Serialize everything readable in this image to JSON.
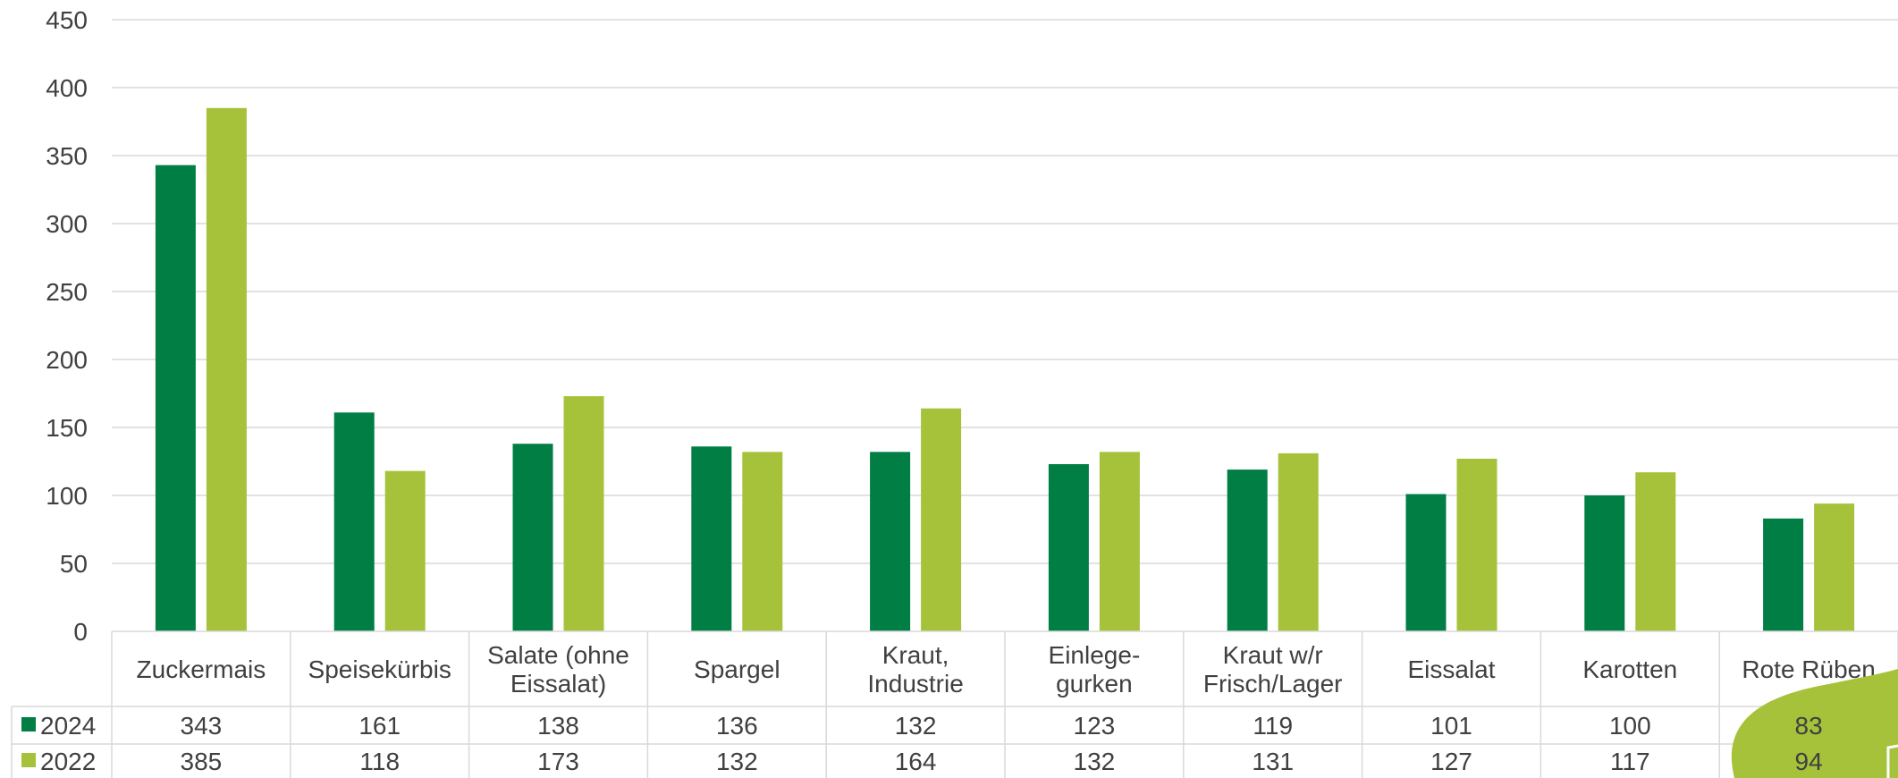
{
  "chart_data": {
    "type": "bar",
    "categories": [
      [
        "Zuckermais"
      ],
      [
        "Speisekürbis"
      ],
      [
        "Salate (ohne",
        "Eissalat)"
      ],
      [
        "Spargel"
      ],
      [
        "Kraut,",
        "Industrie"
      ],
      [
        "Einlege-",
        "gurken"
      ],
      [
        "Kraut w/r",
        "Frisch/Lager"
      ],
      [
        "Eissalat"
      ],
      [
        "Karotten"
      ],
      [
        "Rote Rüben"
      ]
    ],
    "series": [
      {
        "name": "2024",
        "color": "#007e44",
        "values": [
          343,
          161,
          138,
          136,
          132,
          123,
          119,
          101,
          100,
          83
        ]
      },
      {
        "name": "2022",
        "color": "#a6c23a",
        "values": [
          385,
          118,
          173,
          132,
          164,
          132,
          131,
          127,
          117,
          94
        ]
      }
    ],
    "ylim": [
      0,
      450
    ],
    "yticks": [
      "0",
      "50",
      "100",
      "150",
      "200",
      "250",
      "300",
      "350",
      "400",
      "450"
    ],
    "grid": true,
    "legend": "data-table",
    "data_table": true,
    "colors": {
      "gridline": "#d9d9d9",
      "table_border": "#d9d9d9",
      "accent_shape": "#a6c23a"
    }
  }
}
